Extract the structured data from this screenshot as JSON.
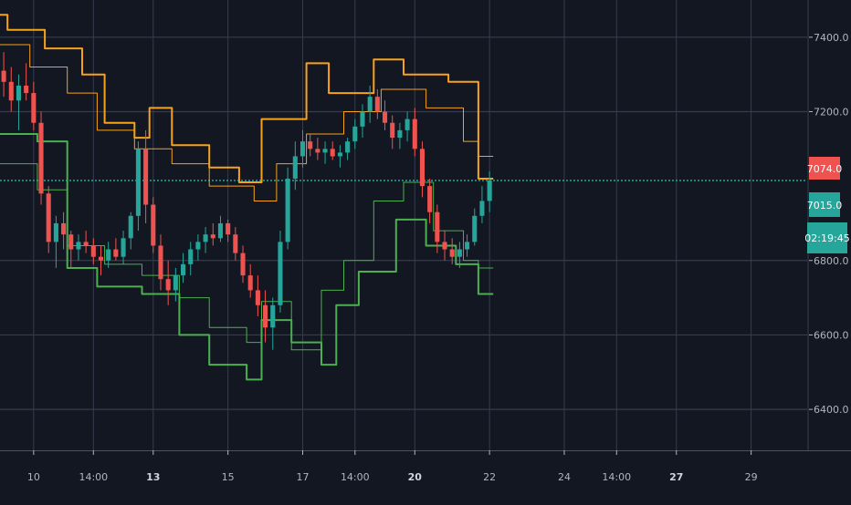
{
  "chart_data": {
    "type": "candlestick",
    "price_axis": {
      "ticks": [
        6400,
        6600,
        6800,
        7200,
        7400
      ],
      "tick_labels": [
        "6400.0",
        "6600.0",
        "6800.0",
        "7200.0",
        "7400.0"
      ],
      "ylim": [
        6290,
        7500
      ]
    },
    "time_axis": {
      "ticks": [
        {
          "label": "10",
          "idx": 4,
          "bold": false
        },
        {
          "label": "14:00",
          "idx": 12,
          "bold": false
        },
        {
          "label": "13",
          "idx": 20,
          "bold": true
        },
        {
          "label": "15",
          "idx": 30,
          "bold": false
        },
        {
          "label": "17",
          "idx": 40,
          "bold": false
        },
        {
          "label": "14:00",
          "idx": 47,
          "bold": false
        },
        {
          "label": "20",
          "idx": 55,
          "bold": true
        },
        {
          "label": "22",
          "idx": 65,
          "bold": false
        },
        {
          "label": "24",
          "idx": 75,
          "bold": false
        },
        {
          "label": "14:00",
          "idx": 82,
          "bold": false
        },
        {
          "label": "27",
          "idx": 90,
          "bold": true
        },
        {
          "label": "29",
          "idx": 100,
          "bold": false
        }
      ],
      "x_range": [
        -0.5,
        107.5
      ]
    },
    "badges": {
      "upper_value": "7074.0",
      "upper_color": "#ef5350",
      "last_price": "7015.0",
      "last_price_value": 7015,
      "last_price_color": "#26a69a",
      "countdown": "02:19:45"
    },
    "colors": {
      "up": "#26a69a",
      "down": "#ef5350",
      "upper_band": "#f7a21b",
      "lower_band": "#4caf50",
      "grid": "#363c4e"
    },
    "candles": [
      {
        "o": 7310,
        "h": 7360,
        "l": 7240,
        "c": 7280
      },
      {
        "o": 7280,
        "h": 7320,
        "l": 7200,
        "c": 7230
      },
      {
        "o": 7230,
        "h": 7300,
        "l": 7150,
        "c": 7270
      },
      {
        "o": 7270,
        "h": 7330,
        "l": 7230,
        "c": 7250
      },
      {
        "o": 7250,
        "h": 7280,
        "l": 7150,
        "c": 7170
      },
      {
        "o": 7170,
        "h": 7200,
        "l": 6950,
        "c": 6980
      },
      {
        "o": 6980,
        "h": 7000,
        "l": 6820,
        "c": 6850
      },
      {
        "o": 6850,
        "h": 6920,
        "l": 6780,
        "c": 6900
      },
      {
        "o": 6900,
        "h": 6930,
        "l": 6830,
        "c": 6870
      },
      {
        "o": 6870,
        "h": 6880,
        "l": 6780,
        "c": 6830
      },
      {
        "o": 6830,
        "h": 6870,
        "l": 6800,
        "c": 6850
      },
      {
        "o": 6850,
        "h": 6880,
        "l": 6820,
        "c": 6840
      },
      {
        "o": 6840,
        "h": 6860,
        "l": 6790,
        "c": 6810
      },
      {
        "o": 6810,
        "h": 6840,
        "l": 6760,
        "c": 6800
      },
      {
        "o": 6800,
        "h": 6850,
        "l": 6780,
        "c": 6830
      },
      {
        "o": 6830,
        "h": 6860,
        "l": 6800,
        "c": 6810
      },
      {
        "o": 6810,
        "h": 6880,
        "l": 6790,
        "c": 6860
      },
      {
        "o": 6860,
        "h": 6930,
        "l": 6830,
        "c": 6920
      },
      {
        "o": 6920,
        "h": 7120,
        "l": 6880,
        "c": 7100
      },
      {
        "o": 7100,
        "h": 7150,
        "l": 6900,
        "c": 6950
      },
      {
        "o": 6950,
        "h": 6970,
        "l": 6820,
        "c": 6840
      },
      {
        "o": 6840,
        "h": 6870,
        "l": 6720,
        "c": 6750
      },
      {
        "o": 6750,
        "h": 6800,
        "l": 6680,
        "c": 6720
      },
      {
        "o": 6720,
        "h": 6780,
        "l": 6690,
        "c": 6760
      },
      {
        "o": 6760,
        "h": 6820,
        "l": 6740,
        "c": 6790
      },
      {
        "o": 6790,
        "h": 6850,
        "l": 6760,
        "c": 6830
      },
      {
        "o": 6830,
        "h": 6870,
        "l": 6800,
        "c": 6850
      },
      {
        "o": 6850,
        "h": 6890,
        "l": 6820,
        "c": 6870
      },
      {
        "o": 6870,
        "h": 6900,
        "l": 6840,
        "c": 6860
      },
      {
        "o": 6860,
        "h": 6920,
        "l": 6850,
        "c": 6900
      },
      {
        "o": 6900,
        "h": 6910,
        "l": 6850,
        "c": 6870
      },
      {
        "o": 6870,
        "h": 6890,
        "l": 6800,
        "c": 6820
      },
      {
        "o": 6820,
        "h": 6840,
        "l": 6740,
        "c": 6760
      },
      {
        "o": 6760,
        "h": 6790,
        "l": 6700,
        "c": 6720
      },
      {
        "o": 6720,
        "h": 6760,
        "l": 6650,
        "c": 6680
      },
      {
        "o": 6680,
        "h": 6720,
        "l": 6580,
        "c": 6620
      },
      {
        "o": 6620,
        "h": 6700,
        "l": 6560,
        "c": 6680
      },
      {
        "o": 6680,
        "h": 6880,
        "l": 6660,
        "c": 6850
      },
      {
        "o": 6850,
        "h": 7050,
        "l": 6830,
        "c": 7020
      },
      {
        "o": 7020,
        "h": 7120,
        "l": 6990,
        "c": 7080
      },
      {
        "o": 7080,
        "h": 7150,
        "l": 7050,
        "c": 7120
      },
      {
        "o": 7120,
        "h": 7140,
        "l": 7080,
        "c": 7100
      },
      {
        "o": 7100,
        "h": 7130,
        "l": 7070,
        "c": 7090
      },
      {
        "o": 7090,
        "h": 7120,
        "l": 7060,
        "c": 7100
      },
      {
        "o": 7100,
        "h": 7120,
        "l": 7070,
        "c": 7080
      },
      {
        "o": 7080,
        "h": 7110,
        "l": 7050,
        "c": 7090
      },
      {
        "o": 7090,
        "h": 7130,
        "l": 7070,
        "c": 7120
      },
      {
        "o": 7120,
        "h": 7180,
        "l": 7100,
        "c": 7160
      },
      {
        "o": 7160,
        "h": 7220,
        "l": 7130,
        "c": 7200
      },
      {
        "o": 7200,
        "h": 7270,
        "l": 7170,
        "c": 7240
      },
      {
        "o": 7240,
        "h": 7260,
        "l": 7180,
        "c": 7200
      },
      {
        "o": 7200,
        "h": 7230,
        "l": 7150,
        "c": 7170
      },
      {
        "o": 7170,
        "h": 7190,
        "l": 7100,
        "c": 7130
      },
      {
        "o": 7130,
        "h": 7170,
        "l": 7100,
        "c": 7150
      },
      {
        "o": 7150,
        "h": 7200,
        "l": 7120,
        "c": 7180
      },
      {
        "o": 7180,
        "h": 7210,
        "l": 7080,
        "c": 7100
      },
      {
        "o": 7100,
        "h": 7120,
        "l": 6970,
        "c": 7000
      },
      {
        "o": 7000,
        "h": 7020,
        "l": 6900,
        "c": 6930
      },
      {
        "o": 6930,
        "h": 6950,
        "l": 6820,
        "c": 6850
      },
      {
        "o": 6850,
        "h": 6880,
        "l": 6800,
        "c": 6830
      },
      {
        "o": 6830,
        "h": 6860,
        "l": 6790,
        "c": 6810
      },
      {
        "o": 6810,
        "h": 6850,
        "l": 6780,
        "c": 6830
      },
      {
        "o": 6830,
        "h": 6870,
        "l": 6810,
        "c": 6850
      },
      {
        "o": 6850,
        "h": 6940,
        "l": 6840,
        "c": 6920
      },
      {
        "o": 6920,
        "h": 7000,
        "l": 6900,
        "c": 6960
      },
      {
        "o": 6960,
        "h": 7040,
        "l": 6930,
        "c": 7015
      }
    ],
    "upper_band": [
      [
        -0.5,
        7460
      ],
      [
        0.5,
        7460
      ],
      [
        0.5,
        7420
      ],
      [
        5.5,
        7420
      ],
      [
        5.5,
        7370
      ],
      [
        10.5,
        7370
      ],
      [
        10.5,
        7300
      ],
      [
        13.5,
        7300
      ],
      [
        13.5,
        7170
      ],
      [
        17.5,
        7170
      ],
      [
        17.5,
        7130
      ],
      [
        19.5,
        7130
      ],
      [
        19.5,
        7210
      ],
      [
        22.5,
        7210
      ],
      [
        22.5,
        7110
      ],
      [
        27.5,
        7110
      ],
      [
        27.5,
        7050
      ],
      [
        31.5,
        7050
      ],
      [
        31.5,
        7010
      ],
      [
        34.5,
        7010
      ],
      [
        34.5,
        7180
      ],
      [
        40.5,
        7180
      ],
      [
        40.5,
        7330
      ],
      [
        43.5,
        7330
      ],
      [
        43.5,
        7250
      ],
      [
        49.5,
        7250
      ],
      [
        49.5,
        7340
      ],
      [
        53.5,
        7340
      ],
      [
        53.5,
        7300
      ],
      [
        59.5,
        7300
      ],
      [
        59.5,
        7280
      ],
      [
        63.5,
        7280
      ],
      [
        63.5,
        7020
      ],
      [
        65.5,
        7020
      ]
    ],
    "upper_inner": [
      [
        -0.5,
        7380
      ],
      [
        3.5,
        7380
      ],
      [
        3.5,
        7320
      ],
      [
        8.5,
        7320
      ],
      [
        8.5,
        7250
      ],
      [
        12.5,
        7250
      ],
      [
        12.5,
        7150
      ],
      [
        17.5,
        7150
      ],
      [
        17.5,
        7100
      ],
      [
        22.5,
        7100
      ],
      [
        22.5,
        7060
      ],
      [
        27.5,
        7060
      ],
      [
        27.5,
        7000
      ],
      [
        33.5,
        7000
      ],
      [
        33.5,
        6960
      ],
      [
        36.5,
        6960
      ],
      [
        36.5,
        7060
      ],
      [
        40.5,
        7060
      ],
      [
        40.5,
        7140
      ],
      [
        45.5,
        7140
      ],
      [
        45.5,
        7200
      ],
      [
        50.5,
        7200
      ],
      [
        50.5,
        7260
      ],
      [
        56.5,
        7260
      ],
      [
        56.5,
        7210
      ],
      [
        61.5,
        7210
      ],
      [
        61.5,
        7120
      ],
      [
        63.5,
        7120
      ],
      [
        63.5,
        7080
      ],
      [
        65.5,
        7080
      ]
    ],
    "lower_band": [
      [
        -0.5,
        7140
      ],
      [
        4.5,
        7140
      ],
      [
        4.5,
        7120
      ],
      [
        8.5,
        7120
      ],
      [
        8.5,
        6780
      ],
      [
        12.5,
        6780
      ],
      [
        12.5,
        6730
      ],
      [
        18.5,
        6730
      ],
      [
        18.5,
        6710
      ],
      [
        23.5,
        6710
      ],
      [
        23.5,
        6600
      ],
      [
        27.5,
        6600
      ],
      [
        27.5,
        6520
      ],
      [
        32.5,
        6520
      ],
      [
        32.5,
        6480
      ],
      [
        34.5,
        6480
      ],
      [
        34.5,
        6640
      ],
      [
        38.5,
        6640
      ],
      [
        38.5,
        6580
      ],
      [
        42.5,
        6580
      ],
      [
        42.5,
        6520
      ],
      [
        44.5,
        6520
      ],
      [
        44.5,
        6680
      ],
      [
        47.5,
        6680
      ],
      [
        47.5,
        6770
      ],
      [
        52.5,
        6770
      ],
      [
        52.5,
        6910
      ],
      [
        56.5,
        6910
      ],
      [
        56.5,
        6840
      ],
      [
        60.5,
        6840
      ],
      [
        60.5,
        6790
      ],
      [
        63.5,
        6790
      ],
      [
        63.5,
        6710
      ],
      [
        65.5,
        6710
      ]
    ],
    "lower_inner": [
      [
        -0.5,
        7060
      ],
      [
        4.5,
        7060
      ],
      [
        4.5,
        6990
      ],
      [
        8.5,
        6990
      ],
      [
        8.5,
        6840
      ],
      [
        13.5,
        6840
      ],
      [
        13.5,
        6790
      ],
      [
        18.5,
        6790
      ],
      [
        18.5,
        6760
      ],
      [
        23.5,
        6760
      ],
      [
        23.5,
        6700
      ],
      [
        27.5,
        6700
      ],
      [
        27.5,
        6620
      ],
      [
        32.5,
        6620
      ],
      [
        32.5,
        6580
      ],
      [
        34.5,
        6580
      ],
      [
        34.5,
        6690
      ],
      [
        38.5,
        6690
      ],
      [
        38.5,
        6560
      ],
      [
        42.5,
        6560
      ],
      [
        42.5,
        6720
      ],
      [
        45.5,
        6720
      ],
      [
        45.5,
        6800
      ],
      [
        49.5,
        6800
      ],
      [
        49.5,
        6960
      ],
      [
        53.5,
        6960
      ],
      [
        53.5,
        7010
      ],
      [
        57.5,
        7010
      ],
      [
        57.5,
        6880
      ],
      [
        61.5,
        6880
      ],
      [
        61.5,
        6800
      ],
      [
        63.5,
        6800
      ],
      [
        63.5,
        6780
      ],
      [
        65.5,
        6780
      ]
    ]
  }
}
